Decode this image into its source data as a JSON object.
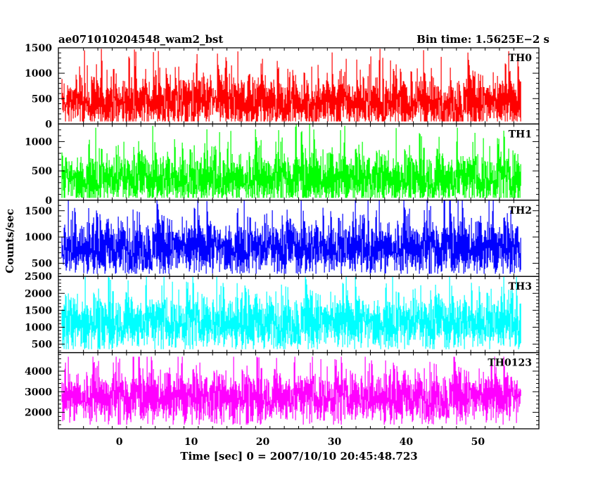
{
  "chart_data": {
    "type": "line",
    "title_left": "ae071010204548_wam2_bst",
    "title_right": "Bin time: 1.5625E−2 s",
    "xlabel": "Time [sec] 0 = 2007/10/10 20:45:48.723",
    "ylabel": "Counts/sec",
    "xlim": [
      -8.5,
      58.5
    ],
    "data_range": [
      -8,
      56
    ],
    "x_ticks": [
      0,
      10,
      20,
      30,
      40,
      50
    ],
    "grid": false,
    "panels": [
      {
        "name": "TH0",
        "color": "#ff0000",
        "ylim": [
          0,
          1500
        ],
        "y_ticks": [
          0,
          500,
          1000,
          1500
        ],
        "approx_mean": 420,
        "approx_min": 50,
        "approx_max": 1480
      },
      {
        "name": "TH1",
        "color": "#00ff00",
        "ylim": [
          0,
          1300
        ],
        "y_ticks": [
          0,
          500,
          1000
        ],
        "approx_mean": 360,
        "approx_min": 40,
        "approx_max": 1300
      },
      {
        "name": "TH2",
        "color": "#0000ff",
        "ylim": [
          250,
          1700
        ],
        "y_ticks": [
          500,
          1000,
          1500
        ],
        "approx_mean": 800,
        "approx_min": 300,
        "approx_max": 1700
      },
      {
        "name": "TH3",
        "color": "#00ffff",
        "ylim": [
          250,
          2500
        ],
        "y_ticks": [
          500,
          1000,
          1500,
          2000,
          2500
        ],
        "approx_mean": 1150,
        "approx_min": 350,
        "approx_max": 2500
      },
      {
        "name": "TH0123",
        "color": "#ff00ff",
        "ylim": [
          1200,
          4900
        ],
        "y_ticks": [
          2000,
          3000,
          4000
        ],
        "approx_mean": 2750,
        "approx_min": 1400,
        "approx_max": 4700
      }
    ]
  }
}
